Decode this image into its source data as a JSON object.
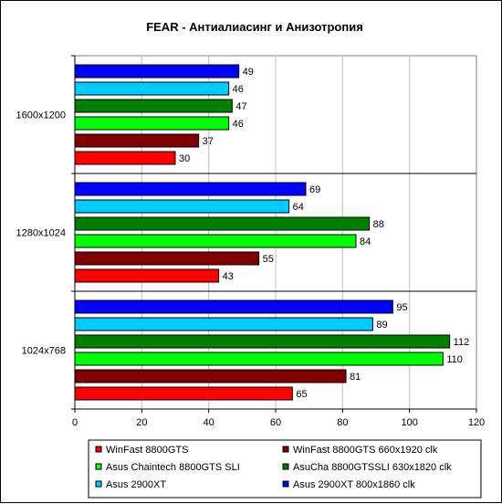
{
  "chart_data": {
    "type": "bar",
    "orientation": "horizontal",
    "title": "FEAR - Антиалиасинг и Анизотропия",
    "categories": [
      "1600x1200",
      "1280x1024",
      "1024x768"
    ],
    "series": [
      {
        "name": "WinFast 8800GTS",
        "color": "#ff0000",
        "values": [
          30,
          43,
          65
        ]
      },
      {
        "name": "WinFast 8800GTS 660x1920 clk",
        "color": "#800000",
        "values": [
          37,
          55,
          81
        ]
      },
      {
        "name": "Asus Chaintech 8800GTS SLI",
        "color": "#00ff00",
        "values": [
          46,
          84,
          110
        ]
      },
      {
        "name": "AsuCha 8800GTSSLI 630x1820 clk",
        "color": "#008000",
        "values": [
          47,
          88,
          112
        ]
      },
      {
        "name": "Asus 2900XT",
        "color": "#00ccff",
        "values": [
          46,
          64,
          89
        ]
      },
      {
        "name": "Asus 2900XT 800x1860 clk",
        "color": "#0000ff",
        "values": [
          49,
          69,
          95
        ]
      }
    ],
    "x_ticks": [
      "0",
      "20",
      "40",
      "60",
      "80",
      "100",
      "120"
    ],
    "xlim": [
      0,
      120
    ],
    "grid": "vertical",
    "legend_position": "bottom"
  }
}
